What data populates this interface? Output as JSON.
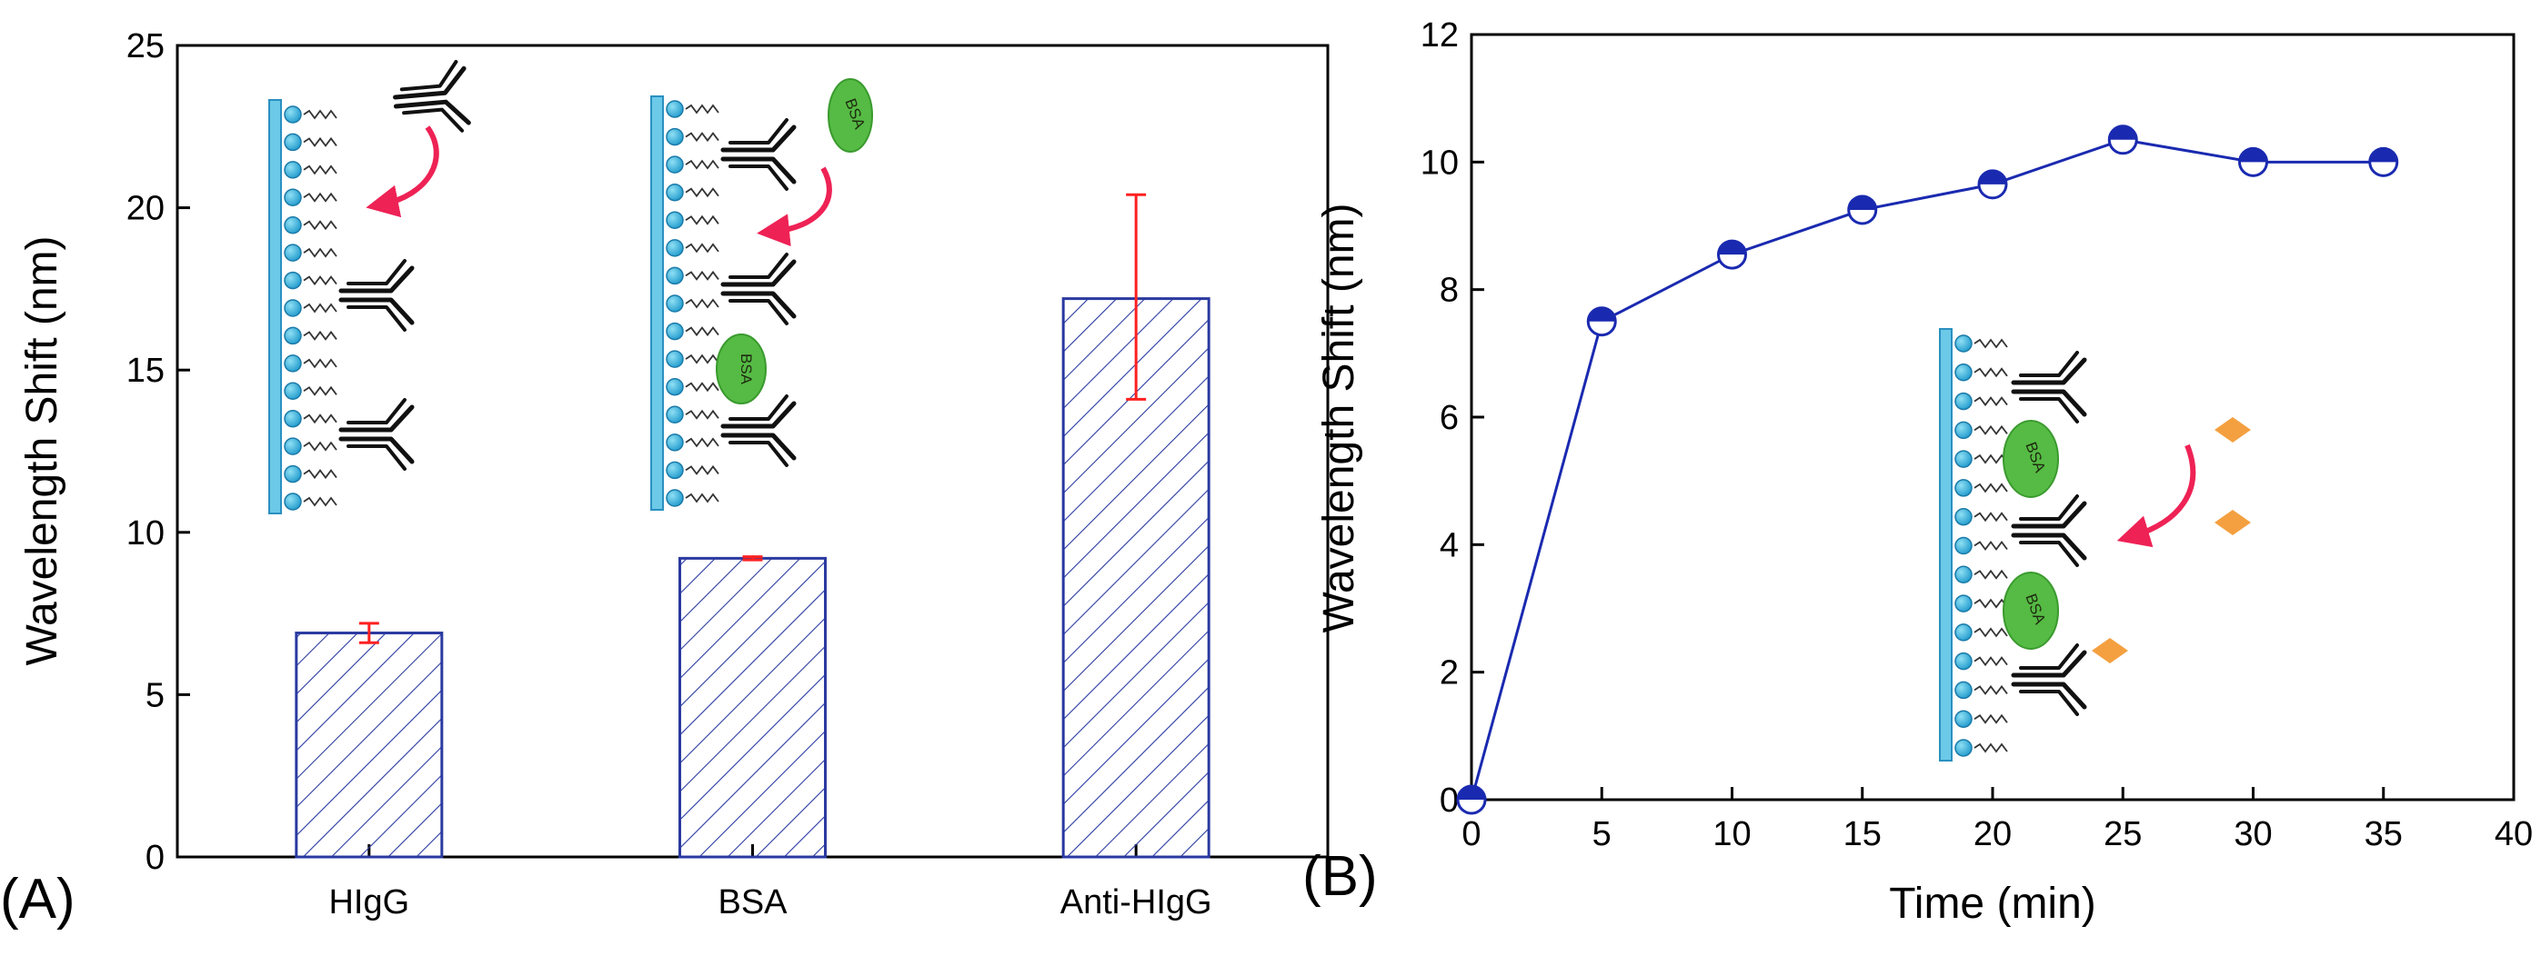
{
  "chart_data": [
    {
      "panel_label": "(A)",
      "type": "bar",
      "title": "",
      "xlabel": "",
      "ylabel": "Wavelength Shift (nm)",
      "categories": [
        "HIgG",
        "BSA",
        "Anti-HIgG"
      ],
      "values": [
        6.9,
        9.2,
        17.2
      ],
      "error_low": [
        0.3,
        0.05,
        3.1
      ],
      "error_high": [
        0.3,
        0.05,
        3.2
      ],
      "ylim": [
        0,
        25
      ],
      "yticks": [
        0,
        5,
        10,
        15,
        20,
        25
      ],
      "bar_fill": "hatched",
      "bar_color": "#2a3aa0",
      "error_color": "#ff2020",
      "grid": false,
      "insets": [
        {
          "name": "antibody-capture-scheme",
          "labels": []
        },
        {
          "name": "bsa-blocking-scheme",
          "labels": [
            "BSA",
            "BSA"
          ]
        }
      ]
    },
    {
      "panel_label": "(B)",
      "type": "line",
      "title": "",
      "xlabel": "Time (min)",
      "ylabel": "Wavelength Shift (nm)",
      "x": [
        0,
        5,
        10,
        15,
        20,
        25,
        30,
        35
      ],
      "y": [
        0,
        7.5,
        8.55,
        9.25,
        9.65,
        10.35,
        10.0,
        10.0
      ],
      "xlim": [
        0,
        40
      ],
      "ylim": [
        0,
        12
      ],
      "xticks": [
        0,
        5,
        10,
        15,
        20,
        25,
        30,
        35,
        40
      ],
      "yticks": [
        0,
        2,
        4,
        6,
        8,
        10,
        12
      ],
      "line_color": "#1a2ab0",
      "marker": "half-filled circle",
      "grid": false,
      "insets": [
        {
          "name": "antigen-binding-scheme",
          "labels": [
            "BSA",
            "BSA"
          ],
          "antigen_color": "#f4a040"
        }
      ]
    }
  ]
}
